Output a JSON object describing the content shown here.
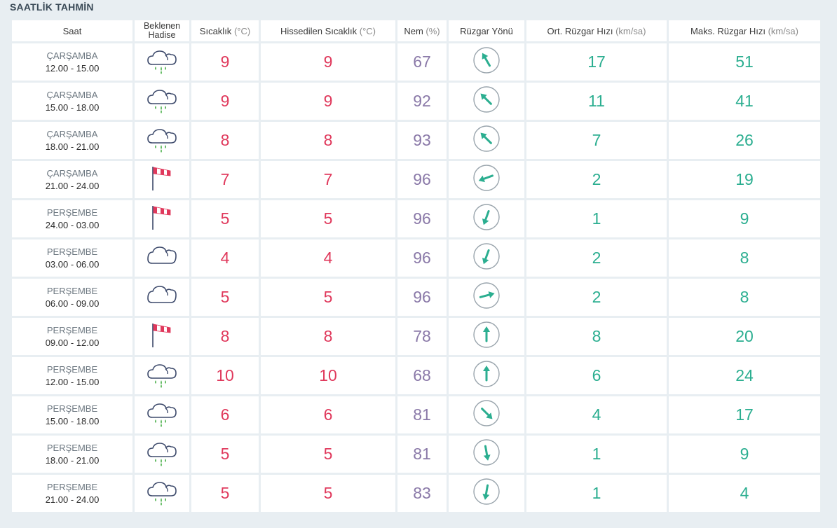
{
  "title": "SAATLİK TAHMİN",
  "headers": {
    "saat": "Saat",
    "hadise_1": "Beklenen",
    "hadise_2": "Hadise",
    "temp": "Sıcaklık",
    "temp_unit": "(°C)",
    "feels": "Hissedilen Sıcaklık",
    "feels_unit": "(°C)",
    "humidity": "Nem",
    "humidity_unit": "(%)",
    "wind_dir": "Rüzgar Yönü",
    "avg_wind": "Ort. Rüzgar Hızı",
    "avg_wind_unit": "(km/sa)",
    "max_wind": "Maks. Rüzgar Hızı",
    "max_wind_unit": "(km/sa)"
  },
  "colors": {
    "temperature": "#e0395c",
    "humidity": "#8a79a8",
    "wind": "#2bae90",
    "icon_stroke": "#3d4a6b",
    "rain": "#5cb85c",
    "windsock": "#e0395c"
  },
  "rows": [
    {
      "day": "ÇARŞAMBA",
      "range": "12.00 - 15.00",
      "icon": "cloud-rain-icon",
      "temp": "9",
      "feels": "9",
      "humidity": "67",
      "wind_dir_deg": 330,
      "avg_wind": "17",
      "max_wind": "51"
    },
    {
      "day": "ÇARŞAMBA",
      "range": "15.00 - 18.00",
      "icon": "cloud-rain-icon",
      "temp": "9",
      "feels": "9",
      "humidity": "92",
      "wind_dir_deg": 315,
      "avg_wind": "11",
      "max_wind": "41"
    },
    {
      "day": "ÇARŞAMBA",
      "range": "18.00 - 21.00",
      "icon": "cloud-rain-icon",
      "temp": "8",
      "feels": "8",
      "humidity": "93",
      "wind_dir_deg": 315,
      "avg_wind": "7",
      "max_wind": "26"
    },
    {
      "day": "ÇARŞAMBA",
      "range": "21.00 - 24.00",
      "icon": "windsock-icon",
      "temp": "7",
      "feels": "7",
      "humidity": "96",
      "wind_dir_deg": 250,
      "avg_wind": "2",
      "max_wind": "19"
    },
    {
      "day": "PERŞEMBE",
      "range": "24.00 - 03.00",
      "icon": "windsock-icon",
      "temp": "5",
      "feels": "5",
      "humidity": "96",
      "wind_dir_deg": 200,
      "avg_wind": "1",
      "max_wind": "9"
    },
    {
      "day": "PERŞEMBE",
      "range": "03.00 - 06.00",
      "icon": "cloud-icon",
      "temp": "4",
      "feels": "4",
      "humidity": "96",
      "wind_dir_deg": 200,
      "avg_wind": "2",
      "max_wind": "8"
    },
    {
      "day": "PERŞEMBE",
      "range": "06.00 - 09.00",
      "icon": "cloud-icon",
      "temp": "5",
      "feels": "5",
      "humidity": "96",
      "wind_dir_deg": 75,
      "avg_wind": "2",
      "max_wind": "8"
    },
    {
      "day": "PERŞEMBE",
      "range": "09.00 - 12.00",
      "icon": "windsock-icon",
      "temp": "8",
      "feels": "8",
      "humidity": "78",
      "wind_dir_deg": 0,
      "avg_wind": "8",
      "max_wind": "20"
    },
    {
      "day": "PERŞEMBE",
      "range": "12.00 - 15.00",
      "icon": "cloud-rain-icon",
      "temp": "10",
      "feels": "10",
      "humidity": "68",
      "wind_dir_deg": 0,
      "avg_wind": "6",
      "max_wind": "24"
    },
    {
      "day": "PERŞEMBE",
      "range": "15.00 - 18.00",
      "icon": "cloud-rain-icon",
      "temp": "6",
      "feels": "6",
      "humidity": "81",
      "wind_dir_deg": 135,
      "avg_wind": "4",
      "max_wind": "17"
    },
    {
      "day": "PERŞEMBE",
      "range": "18.00 - 21.00",
      "icon": "cloud-rain-icon",
      "temp": "5",
      "feels": "5",
      "humidity": "81",
      "wind_dir_deg": 170,
      "avg_wind": "1",
      "max_wind": "9"
    },
    {
      "day": "PERŞEMBE",
      "range": "21.00 - 24.00",
      "icon": "cloud-rain-icon",
      "temp": "5",
      "feels": "5",
      "humidity": "83",
      "wind_dir_deg": 190,
      "avg_wind": "1",
      "max_wind": "4"
    }
  ]
}
